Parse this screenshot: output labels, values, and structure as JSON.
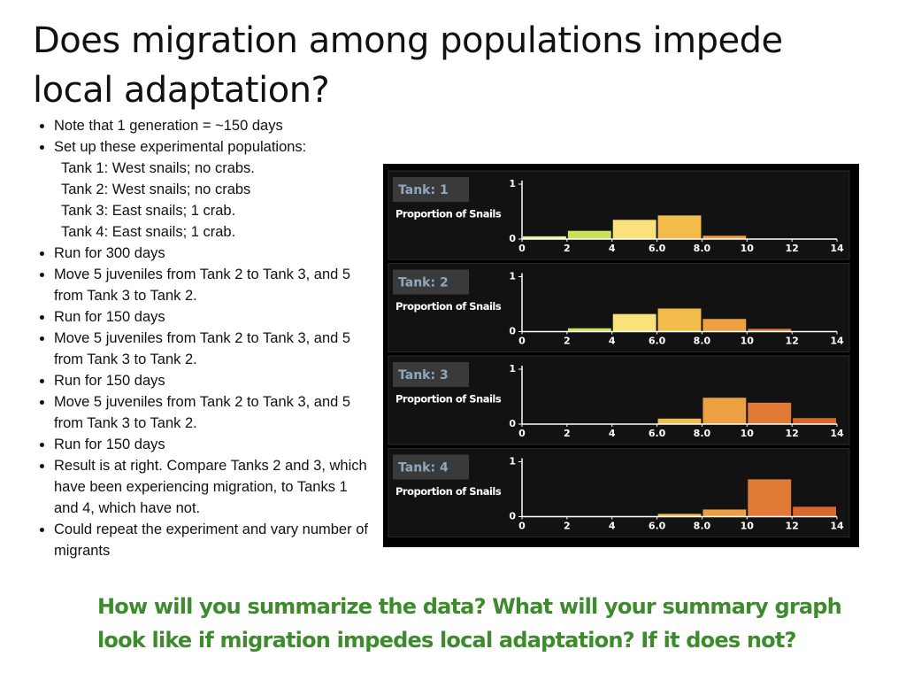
{
  "title": "Does migration among populations impede local adaptation?",
  "bullets": [
    {
      "text": "Note that 1 generation = ~150 days"
    },
    {
      "text": "Set up these experimental populations:",
      "sub": [
        "Tank 1: West snails; no crabs.",
        "Tank 2: West snails; no crabs",
        "Tank 3: East snails; 1 crab.",
        "Tank 4: East snails; 1 crab."
      ]
    },
    {
      "text": "Run for 300 days"
    },
    {
      "text": "Move 5 juveniles from Tank 2 to Tank 3, and 5 from Tank 3 to Tank 2."
    },
    {
      "text": "Run for 150 days"
    },
    {
      "text": "Move 5 juveniles from Tank 2 to Tank 3, and 5 from Tank 3 to Tank 2."
    },
    {
      "text": "Run for 150 days"
    },
    {
      "text": "Move 5 juveniles from Tank 2 to Tank 3, and 5 from Tank 3 to Tank 2."
    },
    {
      "text": "Run for 150 days"
    },
    {
      "text": "Result is at right. Compare Tanks 2 and 3, which have been experiencing migration, to Tanks 1 and 4, which have not."
    },
    {
      "text": "Could repeat the experiment and vary number of migrants"
    }
  ],
  "question": "How will you summarize the data? What will your summary graph look like if migration impedes local adaptation? If it does not?",
  "chart_data": [
    {
      "type": "histogram",
      "title": "Tank: 1",
      "y_label": "Proportion of Snails",
      "bins": [
        0,
        2,
        4,
        6,
        8,
        10,
        12,
        14
      ],
      "values": [
        0.05,
        0.15,
        0.35,
        0.43,
        0.06,
        0,
        0
      ],
      "colors": [
        "#eef08a",
        "#c9e35c",
        "#f9e27a",
        "#f3bb4a",
        "#eca042",
        "#e07a35",
        "#d9662b"
      ],
      "xlim": [
        0,
        14
      ],
      "ylim": [
        0,
        1
      ],
      "yticks": [
        0,
        1
      ],
      "xticks": [
        0,
        2,
        4,
        {
          "value": 6,
          "label": "6.0"
        },
        {
          "value": 8,
          "label": "8.0"
        },
        10,
        12,
        14
      ]
    },
    {
      "type": "histogram",
      "title": "Tank: 2",
      "y_label": "Proportion of Snails",
      "bins": [
        0,
        2,
        4,
        6,
        8,
        10,
        12,
        14
      ],
      "values": [
        0,
        0.06,
        0.32,
        0.42,
        0.23,
        0.05,
        0
      ],
      "colors": [
        "#eef08a",
        "#c9e35c",
        "#f9e27a",
        "#f3bb4a",
        "#eca042",
        "#e07a35",
        "#d9662b"
      ],
      "xlim": [
        0,
        14
      ],
      "ylim": [
        0,
        1
      ],
      "yticks": [
        0,
        1
      ],
      "xticks": [
        0,
        2,
        4,
        {
          "value": 6,
          "label": "6.0"
        },
        {
          "value": 8,
          "label": "8.0"
        },
        10,
        12,
        14
      ]
    },
    {
      "type": "histogram",
      "title": "Tank: 3",
      "y_label": "Proportion of Snails",
      "bins": [
        0,
        2,
        4,
        6,
        8,
        10,
        12,
        14
      ],
      "values": [
        0,
        0,
        0,
        0.1,
        0.48,
        0.39,
        0.11
      ],
      "colors": [
        "#eef08a",
        "#c9e35c",
        "#f9e27a",
        "#f3bb4a",
        "#eca042",
        "#e07a35",
        "#d9662b"
      ],
      "xlim": [
        0,
        14
      ],
      "ylim": [
        0,
        1
      ],
      "yticks": [
        0,
        1
      ],
      "xticks": [
        0,
        2,
        4,
        {
          "value": 6,
          "label": "6.0"
        },
        {
          "value": 8,
          "label": "8.0"
        },
        10,
        12,
        14
      ]
    },
    {
      "type": "histogram",
      "title": "Tank: 4",
      "y_label": "Proportion of Snails",
      "bins": [
        0,
        2,
        4,
        6,
        8,
        10,
        12,
        14
      ],
      "values": [
        0,
        0,
        0,
        0.05,
        0.13,
        0.68,
        0.18
      ],
      "colors": [
        "#eef08a",
        "#c9e35c",
        "#f9e27a",
        "#f3bb4a",
        "#eca042",
        "#e07a35",
        "#d9662b"
      ],
      "xlim": [
        0,
        14
      ],
      "ylim": [
        0,
        1
      ],
      "yticks": [
        0,
        1
      ],
      "xticks": [
        0,
        2,
        4,
        {
          "value": 6,
          "label": "6.0"
        },
        {
          "value": 8,
          "label": "8.0"
        },
        10,
        12,
        14
      ]
    }
  ]
}
